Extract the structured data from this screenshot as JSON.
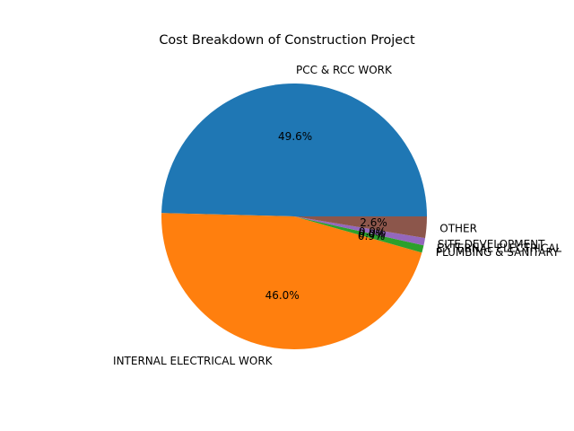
{
  "chart_data": {
    "type": "pie",
    "title": "Cost Breakdown of Construction Project",
    "slices": [
      {
        "label": "PCC & RCC WORK",
        "percent": 49.6,
        "percent_label": "49.6%",
        "color": "#1f77b4"
      },
      {
        "label": "INTERNAL ELECTRICAL WORK",
        "percent": 46.0,
        "percent_label": "46.0%",
        "color": "#ff7f0e"
      },
      {
        "label": "PLUMBING & SANITARY",
        "percent": 0.9,
        "percent_label": "0.9%",
        "color": "#2ca02c"
      },
      {
        "label": "EXTERNAL ELECTRICAL",
        "percent": 0.0,
        "percent_label": "0.0%",
        "color": "#d62728"
      },
      {
        "label": "SITE DEVELOPMENT",
        "percent": 0.9,
        "percent_label": "0.9%",
        "color": "#9467bd"
      },
      {
        "label": "OTHER",
        "percent": 2.6,
        "percent_label": "2.6%",
        "color": "#8c564b"
      }
    ],
    "start_angle_deg": 0,
    "direction": "counterclockwise"
  }
}
